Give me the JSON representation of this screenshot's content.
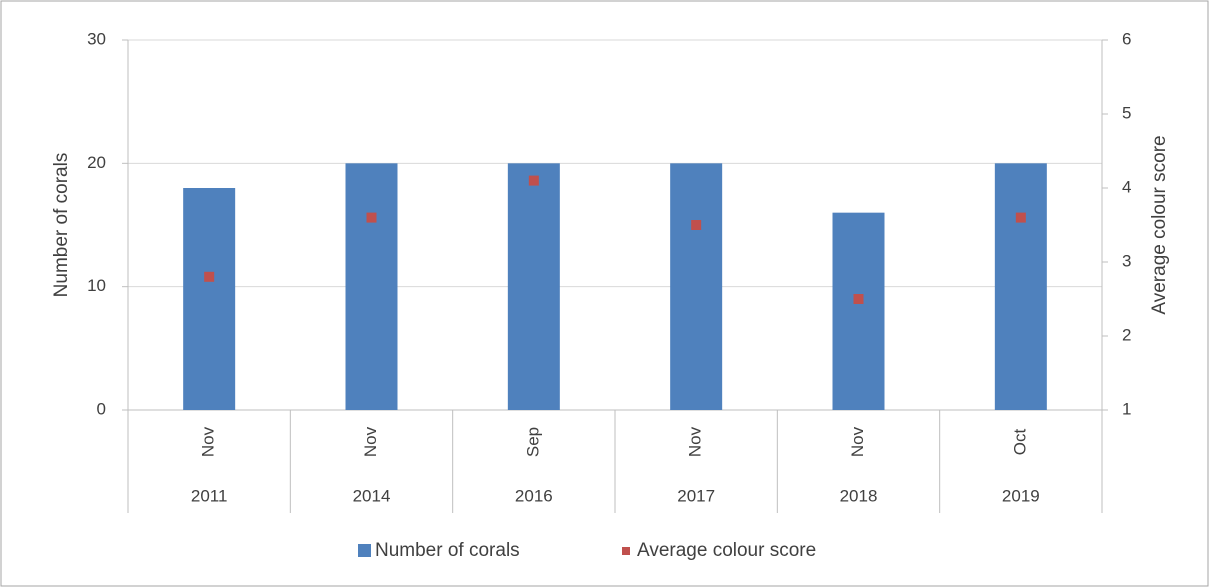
{
  "chart_data": {
    "type": "bar",
    "categories": [
      "Nov",
      "Nov",
      "Sep",
      "Nov",
      "Nov",
      "Oct"
    ],
    "years": [
      "2011",
      "2014",
      "2016",
      "2017",
      "2018",
      "2019"
    ],
    "series": [
      {
        "name": "Number of corals",
        "color": "#4f81bd",
        "values": [
          18,
          20,
          20,
          20,
          16,
          20
        ]
      },
      {
        "name": "Average colour score",
        "color": "#c0504d",
        "type": "scatter",
        "axis": "y2",
        "values": [
          2.8,
          3.6,
          4.1,
          3.5,
          2.5,
          3.6
        ]
      }
    ],
    "ylabel": "Number of corals",
    "y2label": "Average colour score",
    "ylim": [
      0,
      30
    ],
    "yticks": [
      0,
      10,
      20,
      30
    ],
    "y2lim": [
      1,
      6
    ],
    "y2ticks": [
      1,
      2,
      3,
      4,
      5,
      6
    ],
    "grid": true,
    "legend": "bottom"
  }
}
